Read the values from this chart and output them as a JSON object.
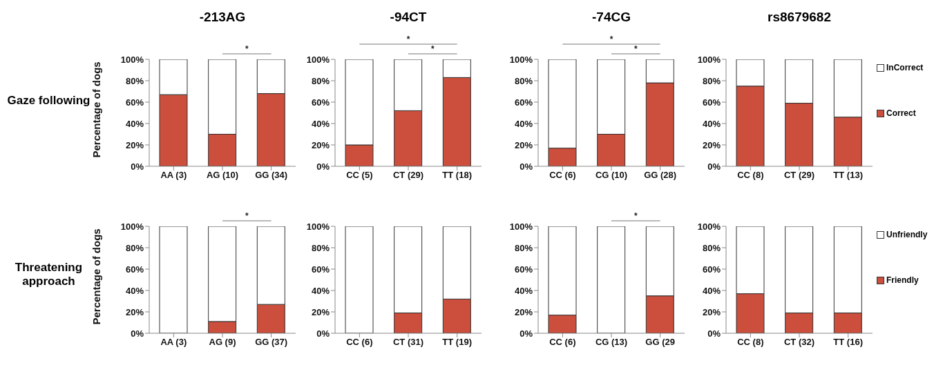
{
  "chart_data": [
    {
      "type": "bar",
      "stacked": true,
      "title": "-213AG",
      "subtitle": "Gaze following",
      "ylabel": "Percentage of dogs",
      "categories": [
        "AA (3)",
        "AG (10)",
        "GG (34)"
      ],
      "series": [
        {
          "color": "#cc4e3c",
          "values": [
            67,
            30,
            68
          ]
        },
        {
          "color": "#ffffff",
          "values": [
            33,
            70,
            32
          ]
        }
      ],
      "ylim": [
        0,
        100
      ],
      "yticks": [
        {
          "value": 0,
          "label": "0%"
        },
        {
          "value": 20,
          "label": "20%"
        },
        {
          "value": 40,
          "label": "40%"
        },
        {
          "value": 60,
          "label": "60%"
        },
        {
          "value": 80,
          "label": "80%"
        },
        {
          "value": 100,
          "label": "100%"
        }
      ],
      "grid": false,
      "legend": false,
      "annotations": [
        "*"
      ]
    },
    {
      "type": "bar",
      "stacked": true,
      "title": "-94CT",
      "categories": [
        "CC (5)",
        "CT (29)",
        "TT (18)"
      ],
      "series": [
        {
          "color": "#cc4e3c",
          "values": [
            20,
            52,
            83
          ]
        },
        {
          "color": "#ffffff",
          "values": [
            80,
            48,
            17
          ]
        }
      ],
      "ylim": [
        0,
        100
      ],
      "yticks": [
        {
          "value": 0,
          "label": "0%"
        },
        {
          "value": 20,
          "label": "20%"
        },
        {
          "value": 40,
          "label": "40%"
        },
        {
          "value": 60,
          "label": "60%"
        },
        {
          "value": 80,
          "label": "80%"
        },
        {
          "value": 100,
          "label": "100%"
        }
      ],
      "grid": false,
      "legend": false,
      "annotations": [
        "*",
        "*"
      ]
    },
    {
      "type": "bar",
      "stacked": true,
      "title": "-74CG",
      "categories": [
        "CC (6)",
        "CG (10)",
        "GG (28)"
      ],
      "series": [
        {
          "color": "#cc4e3c",
          "values": [
            17,
            30,
            78
          ]
        },
        {
          "color": "#ffffff",
          "values": [
            83,
            70,
            22
          ]
        }
      ],
      "ylim": [
        0,
        100
      ],
      "yticks": [
        {
          "value": 0,
          "label": "0%"
        },
        {
          "value": 20,
          "label": "20%"
        },
        {
          "value": 40,
          "label": "40%"
        },
        {
          "value": 60,
          "label": "60%"
        },
        {
          "value": 80,
          "label": "80%"
        },
        {
          "value": 100,
          "label": "100%"
        }
      ],
      "grid": false,
      "legend": false,
      "annotations": [
        "*",
        "*"
      ]
    },
    {
      "type": "bar",
      "stacked": true,
      "title": "rs8679682",
      "categories": [
        "CC (8)",
        "CT (29)",
        "TT (13)"
      ],
      "series": [
        {
          "name": "Correct",
          "color": "#cc4e3c",
          "values": [
            75,
            59,
            46
          ]
        },
        {
          "name": "InCorrect",
          "color": "#ffffff",
          "values": [
            25,
            41,
            54
          ]
        }
      ],
      "ylim": [
        0,
        100
      ],
      "yticks": [
        {
          "value": 0,
          "label": "0%"
        },
        {
          "value": 20,
          "label": "20%"
        },
        {
          "value": 40,
          "label": "40%"
        },
        {
          "value": 60,
          "label": "60%"
        },
        {
          "value": 80,
          "label": "80%"
        },
        {
          "value": 100,
          "label": "100%"
        }
      ],
      "grid": false,
      "legend": "right"
    },
    {
      "type": "bar",
      "stacked": true,
      "subtitle": "Threatening approach",
      "ylabel": "Percentage of dogs",
      "categories": [
        "AA (3)",
        "AG (9)",
        "GG (37)"
      ],
      "series": [
        {
          "color": "#cc4e3c",
          "values": [
            0,
            11,
            27
          ]
        },
        {
          "color": "#ffffff",
          "values": [
            100,
            89,
            73
          ]
        }
      ],
      "ylim": [
        0,
        100
      ],
      "yticks": [
        {
          "value": 0,
          "label": "0%"
        },
        {
          "value": 20,
          "label": "20%"
        },
        {
          "value": 40,
          "label": "40%"
        },
        {
          "value": 60,
          "label": "60%"
        },
        {
          "value": 80,
          "label": "80%"
        },
        {
          "value": 100,
          "label": "100%"
        }
      ],
      "grid": false,
      "legend": false,
      "annotations": [
        "*"
      ]
    },
    {
      "type": "bar",
      "stacked": true,
      "categories": [
        "CC (6)",
        "CT (31)",
        "TT (19)"
      ],
      "series": [
        {
          "color": "#cc4e3c",
          "values": [
            0,
            19,
            32
          ]
        },
        {
          "color": "#ffffff",
          "values": [
            100,
            81,
            68
          ]
        }
      ],
      "ylim": [
        0,
        100
      ],
      "yticks": [
        {
          "value": 0,
          "label": "0%"
        },
        {
          "value": 20,
          "label": "20%"
        },
        {
          "value": 40,
          "label": "40%"
        },
        {
          "value": 60,
          "label": "60%"
        },
        {
          "value": 80,
          "label": "80%"
        },
        {
          "value": 100,
          "label": "100%"
        }
      ],
      "grid": false,
      "legend": false
    },
    {
      "type": "bar",
      "stacked": true,
      "categories": [
        "CC (6)",
        "CG (13)",
        "GG (29"
      ],
      "series": [
        {
          "color": "#cc4e3c",
          "values": [
            17,
            0,
            35
          ]
        },
        {
          "color": "#ffffff",
          "values": [
            83,
            100,
            65
          ]
        }
      ],
      "ylim": [
        0,
        100
      ],
      "yticks": [
        {
          "value": 0,
          "label": "0%"
        },
        {
          "value": 20,
          "label": "20%"
        },
        {
          "value": 40,
          "label": "40%"
        },
        {
          "value": 60,
          "label": "60%"
        },
        {
          "value": 80,
          "label": "80%"
        },
        {
          "value": 100,
          "label": "100%"
        }
      ],
      "grid": false,
      "legend": false,
      "annotations": [
        "*"
      ]
    },
    {
      "type": "bar",
      "stacked": true,
      "categories": [
        "CC (8)",
        "CT (32)",
        "TT (16)"
      ],
      "series": [
        {
          "name": "Friendly",
          "color": "#cc4e3c",
          "values": [
            37,
            19,
            19
          ]
        },
        {
          "name": "Unfriendly",
          "color": "#ffffff",
          "values": [
            63,
            81,
            81
          ]
        }
      ],
      "ylim": [
        0,
        100
      ],
      "yticks": [
        {
          "value": 0,
          "label": "0%"
        },
        {
          "value": 20,
          "label": "20%"
        },
        {
          "value": 40,
          "label": "40%"
        },
        {
          "value": 60,
          "label": "60%"
        },
        {
          "value": 80,
          "label": "80%"
        },
        {
          "value": 100,
          "label": "100%"
        }
      ],
      "grid": false,
      "legend": "right"
    }
  ]
}
